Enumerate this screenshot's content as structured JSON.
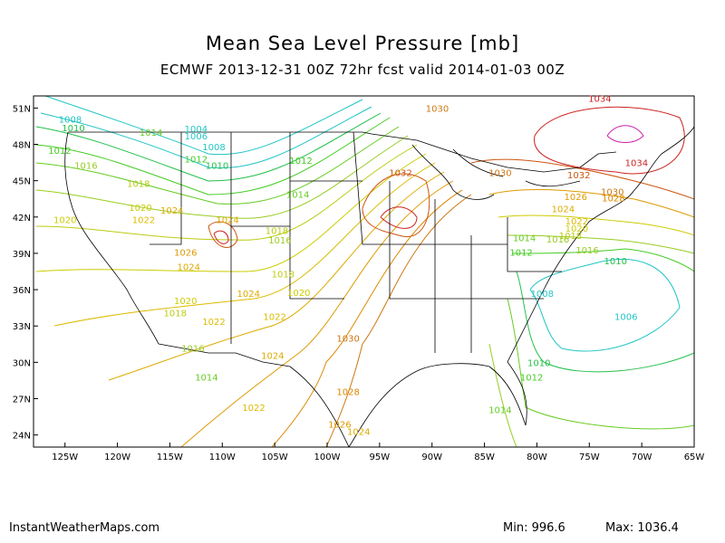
{
  "title": "Mean Sea Level Pressure [mb]",
  "subtitle": "ECMWF 2013-12-31 00Z 72hr fcst valid 2014-01-03 00Z",
  "footer": {
    "site": "InstantWeatherMaps.com",
    "min_label": "Min:",
    "min_value": "996.6",
    "max_label": "Max:",
    "max_value": "1036.4"
  },
  "axes": {
    "lat_labels": [
      "51N",
      "48N",
      "45N",
      "42N",
      "39N",
      "36N",
      "33N",
      "30N",
      "27N",
      "24N"
    ],
    "lat_values": [
      51,
      48,
      45,
      42,
      39,
      36,
      33,
      30,
      27,
      24
    ],
    "lon_labels": [
      "125W",
      "120W",
      "115W",
      "110W",
      "105W",
      "100W",
      "95W",
      "90W",
      "85W",
      "80W",
      "75W",
      "70W",
      "65W"
    ],
    "lon_values": [
      -125,
      -120,
      -115,
      -110,
      -105,
      -100,
      -95,
      -90,
      -85,
      -80,
      -75,
      -70,
      -65
    ],
    "lat_range": [
      23,
      52
    ],
    "lon_range": [
      -128,
      -65
    ]
  },
  "contour_labels": [
    {
      "text": "1008",
      "lon": -124.5,
      "lat": 49.8,
      "color": "#22c4c4"
    },
    {
      "text": "1010",
      "lon": -124.2,
      "lat": 49.1,
      "color": "#22c04a"
    },
    {
      "text": "1012",
      "lon": -125.5,
      "lat": 47.2,
      "color": "#44cc22"
    },
    {
      "text": "1014",
      "lon": -116.8,
      "lat": 48.7,
      "color": "#66cc22"
    },
    {
      "text": "1004",
      "lon": -112.5,
      "lat": 49.0,
      "color": "#22c4c4"
    },
    {
      "text": "1006",
      "lon": -112.5,
      "lat": 48.4,
      "color": "#22c4c4"
    },
    {
      "text": "1008",
      "lon": -110.8,
      "lat": 47.5,
      "color": "#22c4c4"
    },
    {
      "text": "1012",
      "lon": -112.5,
      "lat": 46.5,
      "color": "#44cc22"
    },
    {
      "text": "1010",
      "lon": -110.5,
      "lat": 46.0,
      "color": "#22c04a"
    },
    {
      "text": "1012",
      "lon": -102.5,
      "lat": 46.4,
      "color": "#44cc22"
    },
    {
      "text": "1016",
      "lon": -123.0,
      "lat": 46.0,
      "color": "#99cc22"
    },
    {
      "text": "1018",
      "lon": -118.0,
      "lat": 44.5,
      "color": "#bbcc11"
    },
    {
      "text": "1020",
      "lon": -125.0,
      "lat": 41.5,
      "color": "#cccc00"
    },
    {
      "text": "1020",
      "lon": -117.8,
      "lat": 42.5,
      "color": "#cccc00"
    },
    {
      "text": "1022",
      "lon": -117.5,
      "lat": 41.5,
      "color": "#ddbb00"
    },
    {
      "text": "1024",
      "lon": -114.8,
      "lat": 42.3,
      "color": "#ddaa00"
    },
    {
      "text": "1014",
      "lon": -102.8,
      "lat": 43.6,
      "color": "#66cc22"
    },
    {
      "text": "1024",
      "lon": -109.5,
      "lat": 41.5,
      "color": "#ddaa00"
    },
    {
      "text": "1026",
      "lon": -113.5,
      "lat": 38.8,
      "color": "#dd9900"
    },
    {
      "text": "1024",
      "lon": -113.2,
      "lat": 37.6,
      "color": "#ddaa00"
    },
    {
      "text": "1018",
      "lon": -104.8,
      "lat": 40.6,
      "color": "#bbcc11"
    },
    {
      "text": "1016",
      "lon": -104.5,
      "lat": 39.8,
      "color": "#99cc22"
    },
    {
      "text": "1018",
      "lon": -104.2,
      "lat": 37.0,
      "color": "#bbcc11"
    },
    {
      "text": "1024",
      "lon": -107.5,
      "lat": 35.4,
      "color": "#ddaa00"
    },
    {
      "text": "1020",
      "lon": -102.7,
      "lat": 35.5,
      "color": "#cccc00"
    },
    {
      "text": "1020",
      "lon": -113.5,
      "lat": 34.8,
      "color": "#cccc00"
    },
    {
      "text": "1018",
      "lon": -114.5,
      "lat": 33.8,
      "color": "#bbcc11"
    },
    {
      "text": "1022",
      "lon": -110.8,
      "lat": 33.1,
      "color": "#ddbb00"
    },
    {
      "text": "1022",
      "lon": -105.0,
      "lat": 33.5,
      "color": "#ddbb00"
    },
    {
      "text": "1016",
      "lon": -112.8,
      "lat": 30.9,
      "color": "#99cc22"
    },
    {
      "text": "1024",
      "lon": -105.2,
      "lat": 30.3,
      "color": "#ddaa00"
    },
    {
      "text": "1014",
      "lon": -111.5,
      "lat": 28.5,
      "color": "#66cc22"
    },
    {
      "text": "1022",
      "lon": -107.0,
      "lat": 26.0,
      "color": "#ddbb00"
    },
    {
      "text": "1030",
      "lon": -98.0,
      "lat": 31.7,
      "color": "#cc7711"
    },
    {
      "text": "1028",
      "lon": -98.0,
      "lat": 27.3,
      "color": "#dd8800"
    },
    {
      "text": "1026",
      "lon": -98.8,
      "lat": 24.6,
      "color": "#dd9900"
    },
    {
      "text": "1024",
      "lon": -97.0,
      "lat": 24.0,
      "color": "#ddaa00"
    },
    {
      "text": "1030",
      "lon": -89.5,
      "lat": 50.7,
      "color": "#cc7711"
    },
    {
      "text": "1032",
      "lon": -93.0,
      "lat": 45.4,
      "color": "#cc5511"
    },
    {
      "text": "1030",
      "lon": -83.5,
      "lat": 45.4,
      "color": "#cc7711"
    },
    {
      "text": "1034",
      "lon": -74.0,
      "lat": 51.5,
      "color": "#cc2222"
    },
    {
      "text": "1034",
      "lon": -70.5,
      "lat": 46.2,
      "color": "#cc2222"
    },
    {
      "text": "1032",
      "lon": -76.0,
      "lat": 45.2,
      "color": "#cc5511"
    },
    {
      "text": "1030",
      "lon": -72.8,
      "lat": 43.8,
      "color": "#cc7711"
    },
    {
      "text": "1028",
      "lon": -72.7,
      "lat": 43.3,
      "color": "#dd8800"
    },
    {
      "text": "1026",
      "lon": -76.3,
      "lat": 43.4,
      "color": "#dd9900"
    },
    {
      "text": "1024",
      "lon": -77.5,
      "lat": 42.4,
      "color": "#ddaa00"
    },
    {
      "text": "1022",
      "lon": -76.2,
      "lat": 41.4,
      "color": "#ddbb00"
    },
    {
      "text": "1020",
      "lon": -76.2,
      "lat": 40.8,
      "color": "#cccc00"
    },
    {
      "text": "1018",
      "lon": -76.8,
      "lat": 40.2,
      "color": "#bbcc11"
    },
    {
      "text": "1016",
      "lon": -78.0,
      "lat": 39.9,
      "color": "#99cc22"
    },
    {
      "text": "1014",
      "lon": -81.2,
      "lat": 40.0,
      "color": "#66cc22"
    },
    {
      "text": "1016",
      "lon": -75.2,
      "lat": 39.0,
      "color": "#99cc22"
    },
    {
      "text": "1012",
      "lon": -81.5,
      "lat": 38.8,
      "color": "#44cc22"
    },
    {
      "text": "1010",
      "lon": -72.5,
      "lat": 38.1,
      "color": "#22c04a"
    },
    {
      "text": "1008",
      "lon": -79.5,
      "lat": 35.4,
      "color": "#22c4c4"
    },
    {
      "text": "1006",
      "lon": -71.5,
      "lat": 33.5,
      "color": "#22c4c4"
    },
    {
      "text": "1010",
      "lon": -79.8,
      "lat": 29.7,
      "color": "#22c04a"
    },
    {
      "text": "1012",
      "lon": -80.5,
      "lat": 28.5,
      "color": "#44cc22"
    },
    {
      "text": "1014",
      "lon": -83.5,
      "lat": 25.8,
      "color": "#66cc22"
    }
  ]
}
